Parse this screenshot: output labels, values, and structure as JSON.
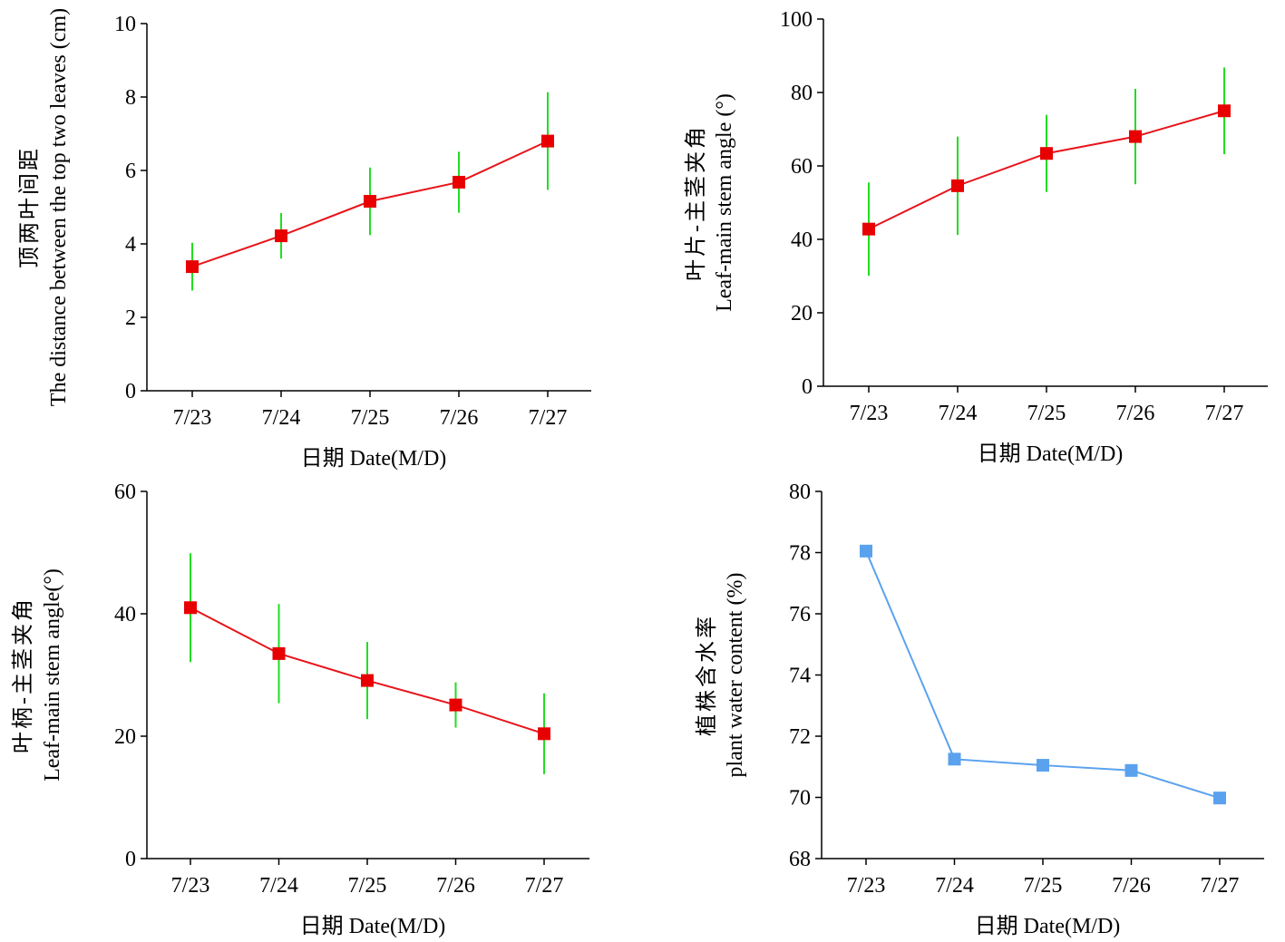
{
  "chart_data": [
    {
      "type": "line",
      "categories": [
        "7/23",
        "7/24",
        "7/25",
        "7/26",
        "7/27"
      ],
      "values": [
        3.38,
        4.22,
        5.16,
        5.68,
        6.8
      ],
      "errors": [
        0.65,
        0.62,
        0.92,
        0.83,
        1.33
      ],
      "ylim": [
        0,
        10
      ],
      "yticks": [
        "0",
        "2",
        "4",
        "6",
        "8",
        "10"
      ],
      "xlabel": "日期 Date(M/D)",
      "ylabel_cn": "顶两叶间距",
      "ylabel_en": "The distance between the top two leaves (cm)",
      "line_color": "#e8141a",
      "marker_color": "#e80000",
      "error_color": "#22dd22"
    },
    {
      "type": "line",
      "categories": [
        "7/23",
        "7/24",
        "7/25",
        "7/26",
        "7/27"
      ],
      "values": [
        42.8,
        54.6,
        63.4,
        68.0,
        75.0
      ],
      "errors": [
        12.7,
        13.4,
        10.5,
        13.0,
        11.8
      ],
      "ylim": [
        0,
        100
      ],
      "yticks": [
        "0",
        "20",
        "40",
        "60",
        "80",
        "100"
      ],
      "xlabel": "日期 Date(M/D)",
      "ylabel_cn": "叶片-主茎夹角",
      "ylabel_en": "Leaf-main stem angle (°)",
      "line_color": "#e8141a",
      "marker_color": "#e80000",
      "error_color": "#22dd22"
    },
    {
      "type": "line",
      "categories": [
        "7/23",
        "7/24",
        "7/25",
        "7/26",
        "7/27"
      ],
      "values": [
        41.0,
        33.5,
        29.1,
        25.1,
        20.4
      ],
      "errors": [
        8.9,
        8.1,
        6.3,
        3.7,
        6.6
      ],
      "ylim": [
        0,
        60
      ],
      "yticks": [
        "0",
        "20",
        "40",
        "60"
      ],
      "xlabel": "日期 Date(M/D)",
      "ylabel_cn": "叶柄-主茎夹角",
      "ylabel_en": "Leaf-main stem angle(°)",
      "line_color": "#e8141a",
      "marker_color": "#e80000",
      "error_color": "#22dd22"
    },
    {
      "type": "line",
      "categories": [
        "7/23",
        "7/24",
        "7/25",
        "7/26",
        "7/27"
      ],
      "values": [
        78.05,
        71.25,
        71.05,
        70.88,
        69.98
      ],
      "errors": [],
      "ylim": [
        68,
        80
      ],
      "yticks": [
        "68",
        "70",
        "72",
        "74",
        "76",
        "78",
        "80"
      ],
      "xlabel": "日期 Date(M/D)",
      "ylabel_cn": "植株含水率",
      "ylabel_en": "plant water content (%)",
      "line_color": "#5aa2ee",
      "marker_color": "#5aa2ee",
      "error_color": "#5aa2ee"
    }
  ]
}
